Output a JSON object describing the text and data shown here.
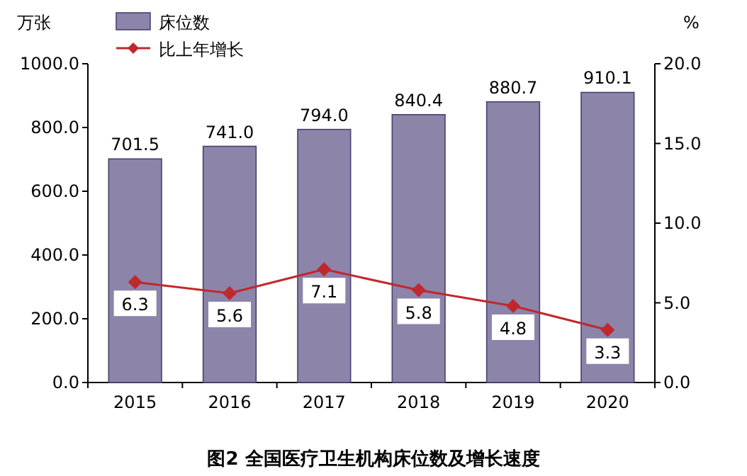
{
  "chart_data": {
    "type": "bar",
    "title": "图2 全国医疗卫生机构床位数及增长速度",
    "ylabel": "万张",
    "y2label": "%",
    "categories": [
      "2015",
      "2016",
      "2017",
      "2018",
      "2019",
      "2020"
    ],
    "series": [
      {
        "name": "床位数",
        "color": "#8d84aa",
        "values": [
          701.5,
          741.0,
          794.0,
          840.4,
          880.7,
          910.1
        ],
        "value_labels": [
          "701.5",
          "741.0",
          "794.0",
          "840.4",
          "880.7",
          "910.1"
        ]
      },
      {
        "name": "比上年增长",
        "type": "line",
        "axis": "y2",
        "color": "#c0282d",
        "marker": "diamond",
        "values": [
          6.3,
          5.6,
          7.1,
          5.8,
          4.8,
          3.3
        ],
        "value_labels": [
          "6.3",
          "5.6",
          "7.1",
          "5.8",
          "4.8",
          "3.3"
        ]
      }
    ],
    "ylim": [
      0,
      1000
    ],
    "yticks": [
      {
        "value": 0,
        "label": "0.0"
      },
      {
        "value": 200,
        "label": "200.0"
      },
      {
        "value": 400,
        "label": "400.0"
      },
      {
        "value": 600,
        "label": "600.0"
      },
      {
        "value": 800,
        "label": "800.0"
      },
      {
        "value": 1000,
        "label": "1000.0"
      }
    ],
    "y2lim": [
      0,
      20
    ],
    "y2ticks": [
      {
        "value": 0,
        "label": "0.0"
      },
      {
        "value": 5,
        "label": "5.0"
      },
      {
        "value": 10,
        "label": "10.0"
      },
      {
        "value": 15,
        "label": "15.0"
      },
      {
        "value": 20,
        "label": "20.0"
      }
    ],
    "legend": "top left",
    "grid": false
  }
}
